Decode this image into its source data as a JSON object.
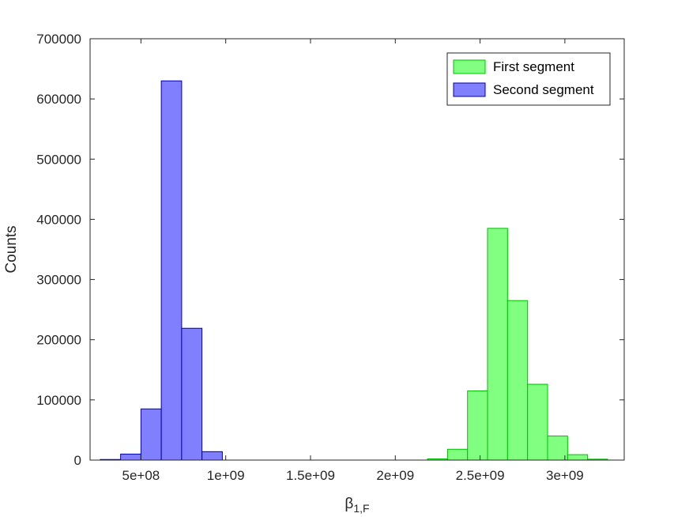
{
  "chart_data": {
    "type": "bar",
    "xlabel": "β",
    "xlabel_subscript": "1,F",
    "ylabel": "Counts",
    "xlim": [
      200000000,
      3350000000
    ],
    "ylim": [
      0,
      700000
    ],
    "x_ticks": [
      500000000,
      1000000000,
      1500000000,
      2000000000,
      2500000000,
      3000000000
    ],
    "x_tick_labels": [
      "5e+08",
      "1e+09",
      "1.5e+09",
      "2e+09",
      "2.5e+09",
      "3e+09"
    ],
    "y_ticks": [
      0,
      100000,
      200000,
      300000,
      400000,
      500000,
      600000,
      700000
    ],
    "y_tick_labels": [
      "0",
      "100000",
      "200000",
      "300000",
      "400000",
      "500000",
      "600000",
      "700000"
    ],
    "grid": false,
    "legend_position": "top-right",
    "series": [
      {
        "name": "First segment",
        "color": "#80ff80",
        "edge_color": "#00c000",
        "bin_width": 118000000,
        "bin_edges_start": [
          2190000000,
          2308000000,
          2426000000,
          2544000000,
          2662000000,
          2780000000,
          2898000000,
          3016000000,
          3134000000
        ],
        "values": [
          2000,
          18000,
          115000,
          385000,
          265000,
          126000,
          40000,
          9000,
          1500
        ]
      },
      {
        "name": "Second segment",
        "color": "#8080ff",
        "edge_color": "#0000b0",
        "bin_width": 120000000,
        "bin_edges_start": [
          260000000,
          380000000,
          500000000,
          620000000,
          740000000,
          860000000
        ],
        "values": [
          1000,
          10000,
          85000,
          630000,
          219000,
          14000
        ]
      }
    ]
  }
}
